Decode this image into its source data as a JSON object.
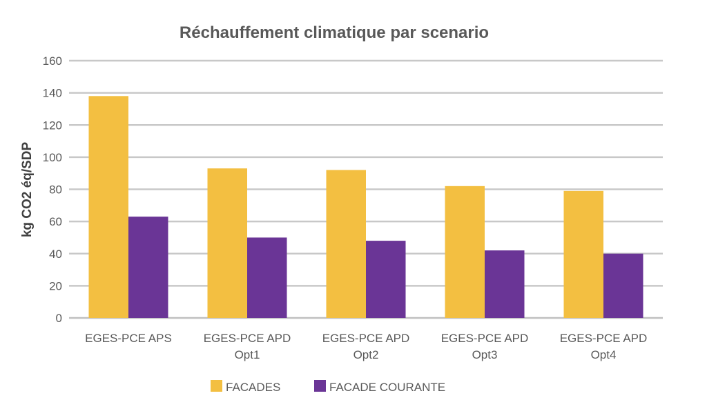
{
  "chart_data": {
    "type": "bar",
    "title": "Réchauffement climatique par scenario",
    "xlabel": "",
    "ylabel": "kg CO2 éq/SDP",
    "ylim": [
      0,
      160
    ],
    "yticks": [
      0,
      20,
      40,
      60,
      80,
      100,
      120,
      140,
      160
    ],
    "grid": true,
    "legend_position": "bottom",
    "categories": [
      [
        "EGES-PCE APS"
      ],
      [
        "EGES-PCE APD",
        "Opt1"
      ],
      [
        "EGES-PCE APD",
        "Opt2"
      ],
      [
        "EGES-PCE APD",
        "Opt3"
      ],
      [
        "EGES-PCE APD",
        "Opt4"
      ]
    ],
    "series": [
      {
        "name": "FACADES",
        "color": "#F3BF41",
        "values": [
          138,
          93,
          92,
          82,
          79
        ]
      },
      {
        "name": "FACADE COURANTE",
        "color": "#6A3596",
        "values": [
          63,
          50,
          48,
          42,
          40
        ]
      }
    ]
  }
}
